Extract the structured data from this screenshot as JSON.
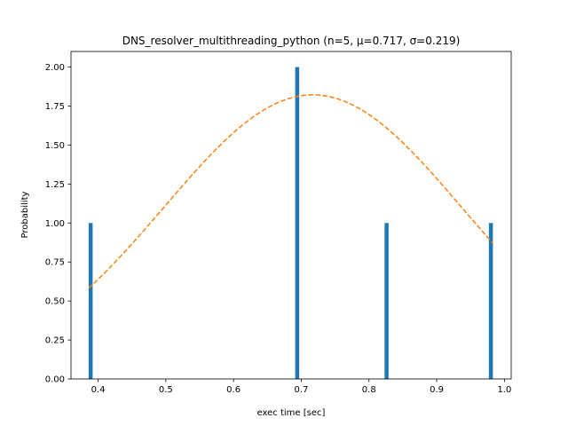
{
  "chart_data": {
    "type": "bar",
    "title": "DNS_resolver_multithreading_python (n=5, μ=0.717, σ=0.219)",
    "xlabel": "exec time [sec]",
    "ylabel": "Probability",
    "xlim": [
      0.36,
      1.01
    ],
    "ylim": [
      0.0,
      2.1
    ],
    "x_ticks": [
      0.4,
      0.5,
      0.6,
      0.7,
      0.8,
      0.9,
      1.0
    ],
    "x_tick_labels": [
      "0.4",
      "0.5",
      "0.6",
      "0.7",
      "0.8",
      "0.9",
      "1.0"
    ],
    "y_ticks": [
      0.0,
      0.25,
      0.5,
      0.75,
      1.0,
      1.25,
      1.5,
      1.75,
      2.0
    ],
    "y_tick_labels": [
      "0.00",
      "0.25",
      "0.50",
      "0.75",
      "1.00",
      "1.25",
      "1.50",
      "1.75",
      "2.00"
    ],
    "grid": false,
    "series": [
      {
        "type": "bar",
        "color": "#1f77b4",
        "bar_width": 0.0059,
        "x": [
          0.389,
          0.694,
          0.826,
          0.98
        ],
        "values": [
          1.0,
          2.0,
          1.0,
          1.0
        ]
      },
      {
        "type": "line",
        "style": "dashed",
        "color": "#ff7f0e",
        "distribution": "normal",
        "mu": 0.717,
        "sigma": 0.219,
        "x_range": [
          0.386,
          0.983
        ]
      }
    ]
  }
}
